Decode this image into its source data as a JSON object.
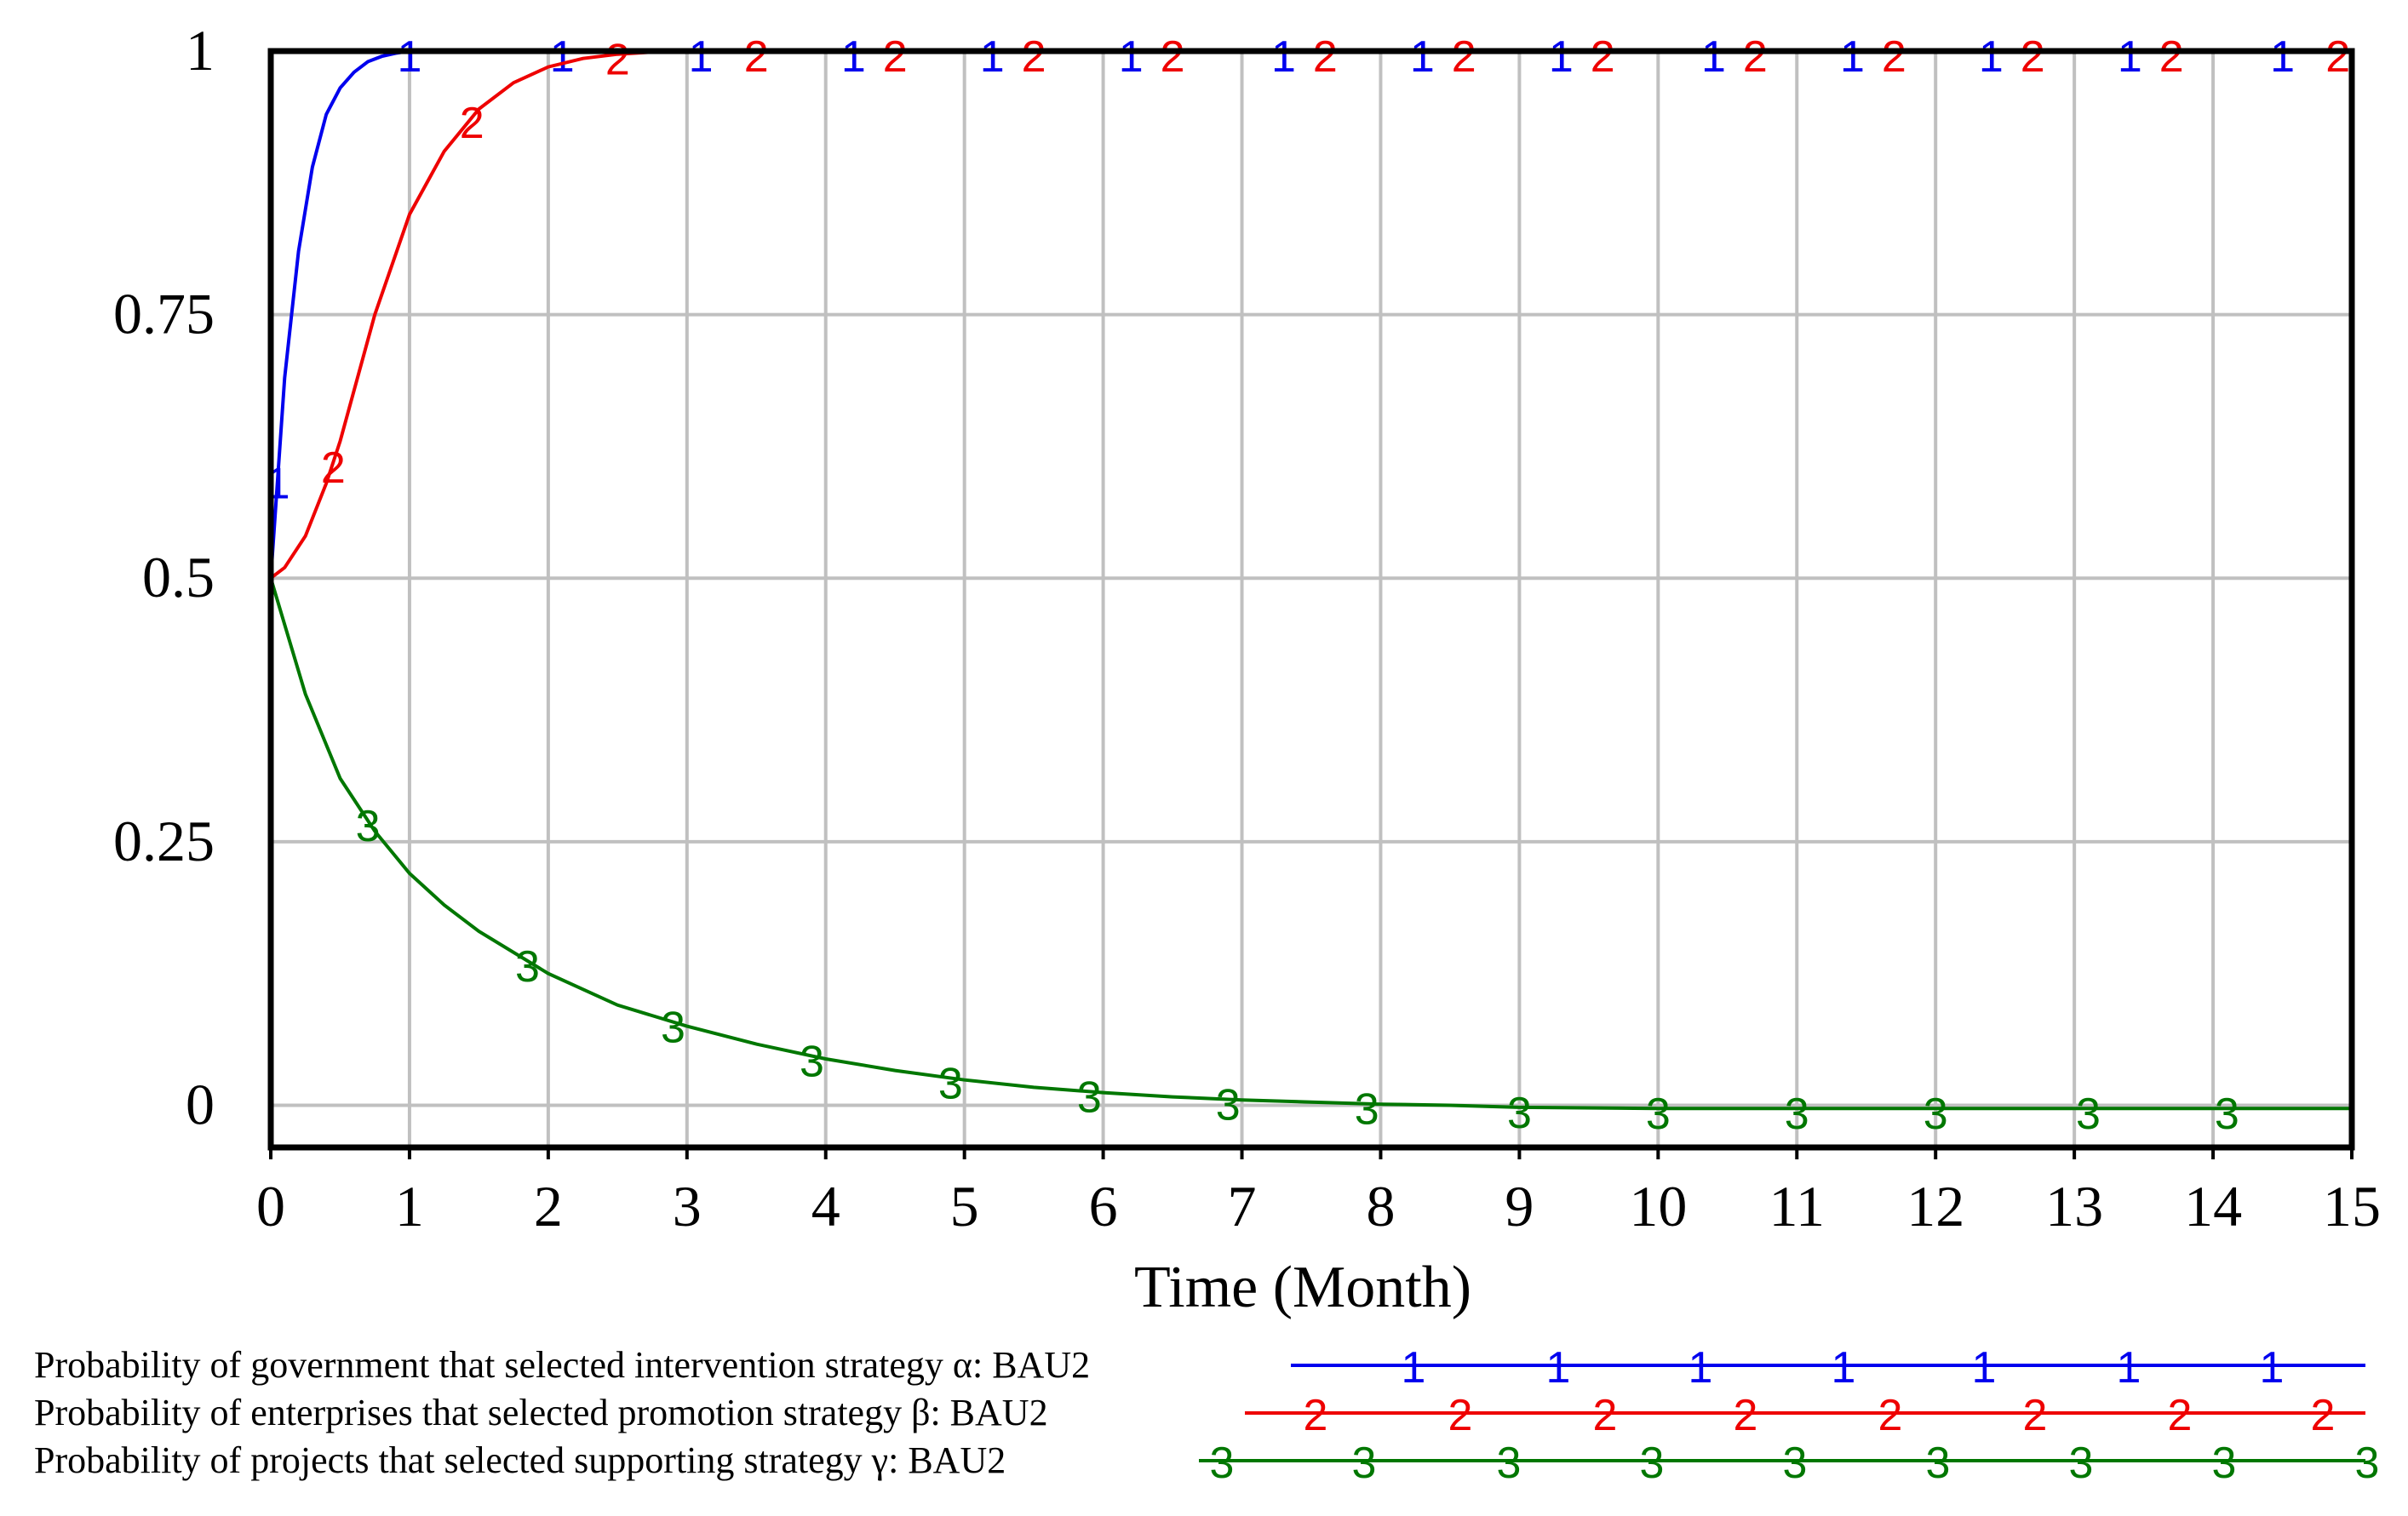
{
  "chart_data": {
    "type": "line",
    "title": "",
    "xlabel": "Time (Month)",
    "ylabel": "",
    "xlim": [
      0,
      15
    ],
    "ylim": [
      -0.04,
      1.0
    ],
    "x_ticks": [
      0,
      1,
      2,
      3,
      4,
      5,
      6,
      7,
      8,
      9,
      10,
      11,
      12,
      13,
      14,
      15
    ],
    "x_tick_labels": [
      "0",
      "1",
      "2",
      "3",
      "4",
      "5",
      "6",
      "7",
      "8",
      "9",
      "10",
      "11",
      "12",
      "13",
      "14",
      "15"
    ],
    "y_ticks": [
      0,
      0.25,
      0.5,
      0.75,
      1
    ],
    "y_tick_labels": [
      "0",
      "0.25",
      "0.5",
      "0.75",
      "1"
    ],
    "grid": true,
    "legend_position": "bottom",
    "series": [
      {
        "name": "Probability of government that selected intervention strategy α: BAU2",
        "marker": "1",
        "color": "#0000ee",
        "x": [
          0,
          0.1,
          0.2,
          0.3,
          0.4,
          0.5,
          0.6,
          0.7,
          0.8,
          0.9,
          1,
          1.5,
          2,
          3,
          4,
          5,
          6,
          7,
          8,
          9,
          10,
          11,
          12,
          13,
          14,
          15
        ],
        "y": [
          0.5,
          0.69,
          0.81,
          0.89,
          0.94,
          0.965,
          0.98,
          0.99,
          0.995,
          0.998,
          1.0,
          1.0,
          1.0,
          1.0,
          1.0,
          1.0,
          1.0,
          1.0,
          1.0,
          1.0,
          1.0,
          1.0,
          1.0,
          1.0,
          1.0,
          1.0
        ]
      },
      {
        "name": "Probability of enterprises that selected promotion strategy β: BAU2",
        "marker": "2",
        "color": "#ee0000",
        "x": [
          0,
          0.1,
          0.25,
          0.4,
          0.5,
          0.75,
          1.0,
          1.25,
          1.5,
          1.75,
          2.0,
          2.25,
          2.5,
          2.75,
          3.0,
          3.5,
          4,
          5,
          6,
          7,
          8,
          9,
          10,
          11,
          12,
          13,
          14,
          15
        ],
        "y": [
          0.5,
          0.51,
          0.54,
          0.59,
          0.63,
          0.75,
          0.845,
          0.905,
          0.945,
          0.97,
          0.985,
          0.993,
          0.997,
          0.999,
          1.0,
          1.0,
          1.0,
          1.0,
          1.0,
          1.0,
          1.0,
          1.0,
          1.0,
          1.0,
          1.0,
          1.0,
          1.0,
          1.0
        ]
      },
      {
        "name": "Probability of projects that selected supporting strategy γ: BAU2",
        "marker": "3",
        "color": "#007700",
        "x": [
          0,
          0.25,
          0.5,
          0.75,
          1.0,
          1.25,
          1.5,
          2.0,
          2.5,
          3.0,
          3.5,
          4.0,
          4.5,
          5.0,
          5.5,
          6.0,
          6.5,
          7.0,
          7.5,
          8.0,
          8.5,
          9.0,
          10,
          11,
          12,
          13,
          14,
          15
        ],
        "y": [
          0.5,
          0.39,
          0.31,
          0.26,
          0.22,
          0.19,
          0.165,
          0.125,
          0.095,
          0.075,
          0.058,
          0.044,
          0.033,
          0.024,
          0.017,
          0.012,
          0.008,
          0.005,
          0.003,
          0.001,
          0.0,
          -0.002,
          -0.003,
          -0.003,
          -0.003,
          -0.003,
          -0.003,
          -0.003
        ]
      }
    ]
  }
}
